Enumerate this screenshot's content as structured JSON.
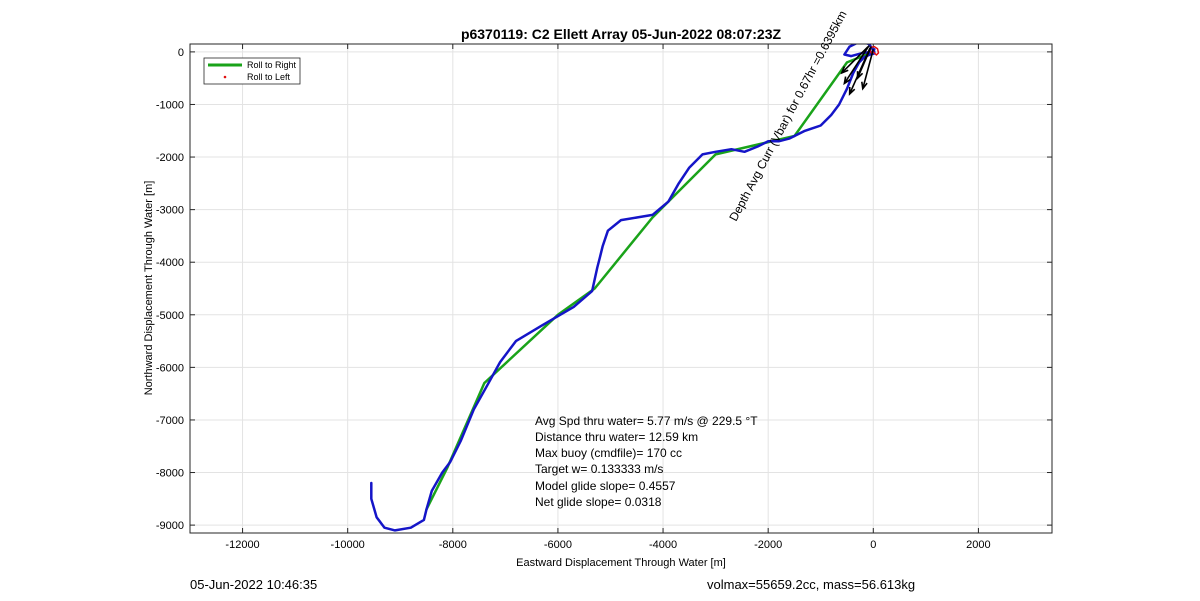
{
  "chart_data": {
    "type": "line",
    "title": "p6370119: C2 Ellett Array 05-Jun-2022 08:07:23Z",
    "xlabel": "Eastward Displacement Through Water [m]",
    "ylabel": "Northward Displacement Through Water [m]",
    "xlim": [
      -13000,
      3400
    ],
    "ylim": [
      -9150,
      150
    ],
    "xticks": [
      -12000,
      -10000,
      -8000,
      -6000,
      -4000,
      -2000,
      0,
      2000
    ],
    "xtick_labels": [
      "-12000",
      "-10000",
      "-8000",
      "-6000",
      "-4000",
      "-2000",
      "0",
      "2000"
    ],
    "yticks": [
      0,
      -1000,
      -2000,
      -3000,
      -4000,
      -5000,
      -6000,
      -7000,
      -8000,
      -9000
    ],
    "ytick_labels": [
      "0",
      "-1000",
      "-2000",
      "-3000",
      "-4000",
      "-5000",
      "-6000",
      "-7000",
      "-8000",
      "-9000"
    ],
    "grid": true,
    "legend": {
      "position": "top-left",
      "entries": [
        {
          "label": "Roll to Right",
          "color": "#1aa31a",
          "marker": "line"
        },
        {
          "label": "Roll to Left",
          "color": "#e01010",
          "marker": "dot"
        }
      ]
    },
    "series": [
      {
        "color": "#1aa31a",
        "x": [
          0,
          -500,
          -1500,
          -3000,
          -4200,
          -5300,
          -6000,
          -7400,
          -8100,
          -8500
        ],
        "y": [
          0,
          -200,
          -1600,
          -1950,
          -3150,
          -4500,
          -5000,
          -6300,
          -7900,
          -8700
        ]
      },
      {
        "color": "#1515c8",
        "x": [
          -9550,
          -9550,
          -9450,
          -9300,
          -9100,
          -8800,
          -8550,
          -8500,
          -8400,
          -8200,
          -8050,
          -7850,
          -7600,
          -7350,
          -7100,
          -6800,
          -6300,
          -5700,
          -5350,
          -5250,
          -5200,
          -5150,
          -5050,
          -4800,
          -4500,
          -4200,
          -3900,
          -3700,
          -3500,
          -3250,
          -3000,
          -2700,
          -2450,
          -2200,
          -2000,
          -1800,
          -1600,
          -1300,
          -1000,
          -800,
          -650,
          -500,
          -380,
          -270,
          -170,
          -60,
          20,
          20,
          -80,
          -250,
          -450,
          -550,
          -420,
          -200,
          0,
          20
        ],
        "y": [
          -8200,
          -8500,
          -8850,
          -9050,
          -9100,
          -9050,
          -8900,
          -8700,
          -8350,
          -8000,
          -7800,
          -7400,
          -6800,
          -6350,
          -5900,
          -5500,
          -5200,
          -4850,
          -4550,
          -4100,
          -3900,
          -3700,
          -3400,
          -3200,
          -3150,
          -3100,
          -2850,
          -2500,
          -2200,
          -1950,
          -1900,
          -1850,
          -1900,
          -1800,
          -1700,
          -1700,
          -1650,
          -1500,
          -1400,
          -1200,
          -1000,
          -700,
          -400,
          -200,
          -100,
          -50,
          -30,
          0,
          150,
          200,
          100,
          -50,
          -80,
          -20,
          0,
          50
        ]
      },
      {
        "color": "#e01010",
        "x": [
          0,
          60,
          100,
          80,
          20,
          -40,
          -60,
          -40,
          0
        ],
        "y": [
          0,
          -60,
          -20,
          60,
          100,
          90,
          40,
          -20,
          0
        ]
      }
    ],
    "current_arrows": [
      {
        "from": [
          -100,
          100
        ],
        "to": [
          -600,
          -400
        ]
      },
      {
        "from": [
          -80,
          120
        ],
        "to": [
          -550,
          -600
        ]
      },
      {
        "from": [
          -60,
          80
        ],
        "to": [
          -450,
          -800
        ]
      },
      {
        "from": [
          -40,
          100
        ],
        "to": [
          -300,
          -500
        ]
      },
      {
        "from": [
          0,
          50
        ],
        "to": [
          -200,
          -700
        ]
      }
    ],
    "annotations": [
      {
        "text": "Avg Spd thru water=  5.77 m/s @ 229.5 °T"
      },
      {
        "text": "Distance thru water= 12.59 km"
      },
      {
        "text": "Max buoy (cmdfile)= 170 cc"
      },
      {
        "text": "Target w= 0.133333 m/s"
      },
      {
        "text": "Model glide slope= 0.4557"
      },
      {
        "text": "Net glide slope= 0.0318"
      }
    ],
    "rotated_label": "Depth Avg Curr (Vbar) for 0.67hr =0.6395km",
    "rotated_label_angle_deg": 62
  },
  "footer": {
    "left": "05-Jun-2022 10:46:35",
    "right": "volmax=55659.2cc, mass=56.613kg"
  }
}
